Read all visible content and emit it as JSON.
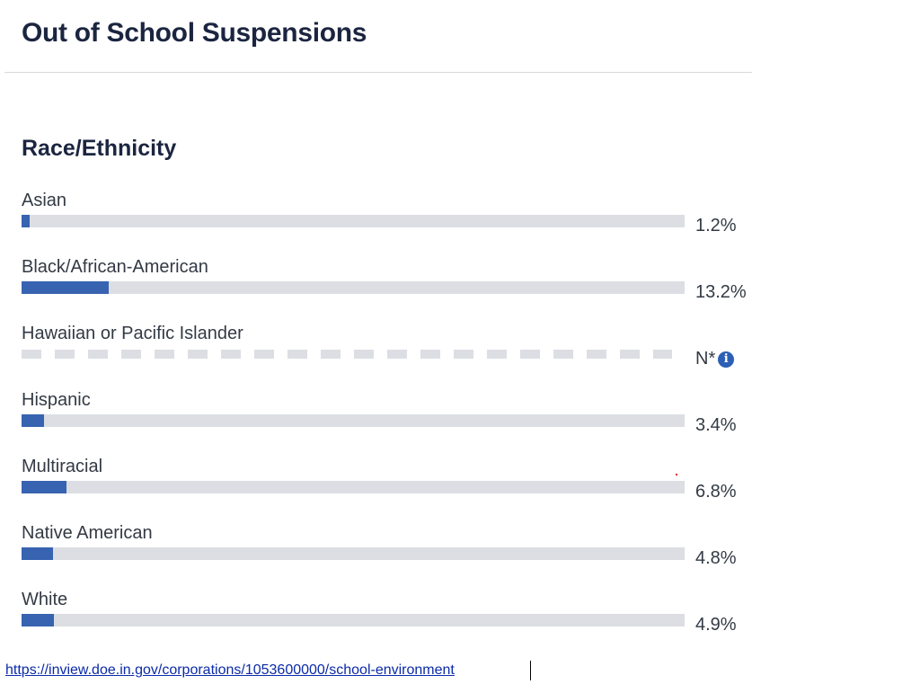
{
  "header": {
    "title": "Out of School Suspensions"
  },
  "section": {
    "title": "Race/Ethnicity"
  },
  "chart_data": {
    "type": "bar",
    "orientation": "horizontal",
    "title": "Race/Ethnicity",
    "categories": [
      "Asian",
      "Black/African-American",
      "Hawaiian or Pacific Islander",
      "Hispanic",
      "Multiracial",
      "Native American",
      "White"
    ],
    "values": [
      1.2,
      13.2,
      null,
      3.4,
      6.8,
      4.8,
      4.9
    ],
    "value_labels": [
      "1.2%",
      "13.2%",
      "N*",
      "3.4%",
      "6.8%",
      "4.8%",
      "4.9%"
    ],
    "xlim": [
      0,
      100
    ],
    "unit": "%",
    "colors": {
      "fill": "#3763b0",
      "track": "#dcdee3",
      "info": "#2c5fb5"
    }
  },
  "footer": {
    "source_url": "https://inview.doe.in.gov/corporations/1053600000/school-environment"
  }
}
